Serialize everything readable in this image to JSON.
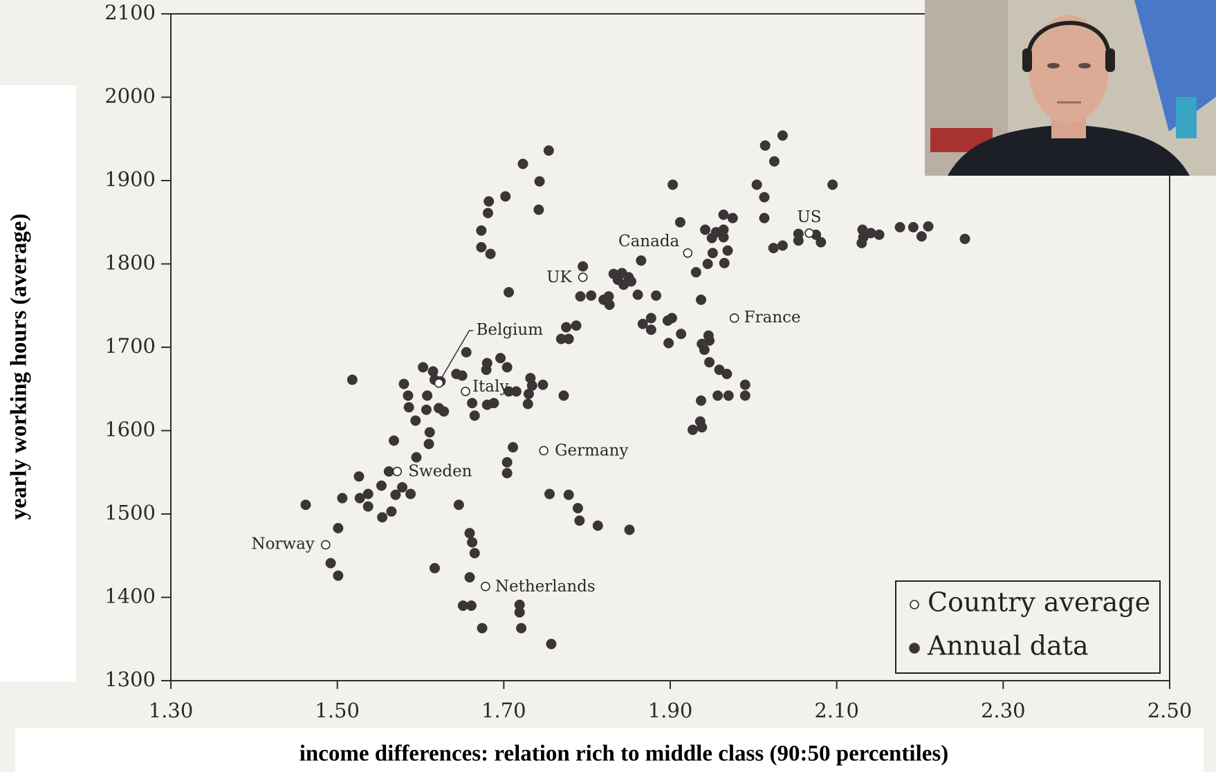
{
  "chart_data": {
    "type": "scatter",
    "x_label": "income differences: relation rich to middle class (90:50 percentiles)",
    "y_label": "yearly working hours (average)",
    "xlim": [
      1.3,
      2.5
    ],
    "xticks": [
      {
        "value": 1.3,
        "label": "1.30"
      },
      {
        "value": 1.5,
        "label": "1.50"
      },
      {
        "value": 1.7,
        "label": "1.70"
      },
      {
        "value": 1.9,
        "label": "1.90"
      },
      {
        "value": 2.1,
        "label": "2.10"
      },
      {
        "value": 2.3,
        "label": "2.30"
      },
      {
        "value": 2.5,
        "label": "2.50"
      }
    ],
    "ylim": [
      1300,
      2100
    ],
    "yticks": [
      1300,
      1400,
      1500,
      1600,
      1700,
      1800,
      1900,
      2000,
      2100
    ],
    "legend_position": "lower right",
    "series": [
      {
        "name": "Country average",
        "marker": "open",
        "color": "#2b2b2b",
        "point_labels": [
          "Norway",
          "Sweden",
          "Belgium",
          "Italy",
          "Netherlands",
          "Germany",
          "UK",
          "Canada",
          "France",
          "US"
        ],
        "x": [
          1.486,
          1.572,
          1.622,
          1.654,
          1.678,
          1.748,
          1.795,
          1.921,
          1.977,
          2.067
        ],
        "y": [
          1463,
          1551,
          1657,
          1647,
          1413,
          1576,
          1784,
          1813,
          1735,
          1837
        ]
      },
      {
        "name": "Annual data",
        "marker": "filled",
        "color": "#3a3536",
        "x": [
          1.754,
          1.723,
          1.743,
          1.702,
          1.682,
          1.681,
          1.742,
          1.673,
          1.673,
          1.684,
          1.706,
          1.795,
          1.792,
          1.805,
          1.82,
          1.826,
          1.827,
          1.832,
          1.842,
          1.85,
          1.837,
          1.844,
          1.853,
          1.861,
          1.865,
          1.883,
          1.867,
          1.877,
          1.877,
          1.897,
          1.902,
          1.913,
          1.898,
          1.775,
          1.787,
          1.769,
          1.778,
          1.903,
          1.912,
          1.931,
          1.945,
          1.937,
          1.942,
          1.95,
          1.955,
          1.964,
          1.964,
          1.951,
          1.964,
          1.975,
          1.965,
          1.969,
          2.004,
          2.013,
          2.014,
          2.025,
          2.035,
          2.013,
          2.024,
          2.035,
          2.054,
          2.054,
          2.075,
          2.081,
          2.095,
          2.131,
          2.132,
          2.13,
          2.141,
          2.151,
          2.176,
          2.192,
          2.202,
          2.21,
          2.254,
          1.938,
          1.947,
          1.946,
          1.941,
          1.947,
          1.959,
          1.968,
          1.97,
          1.99,
          1.99,
          1.957,
          1.937,
          1.936,
          1.927,
          1.938,
          1.603,
          1.615,
          1.617,
          1.624,
          1.643,
          1.65,
          1.655,
          1.68,
          1.679,
          1.696,
          1.704,
          1.706,
          1.715,
          1.732,
          1.747,
          1.772,
          1.662,
          1.665,
          1.68,
          1.688,
          1.734,
          1.73,
          1.729,
          1.58,
          1.585,
          1.586,
          1.594,
          1.607,
          1.608,
          1.622,
          1.628,
          1.611,
          1.61,
          1.595,
          1.568,
          1.562,
          1.578,
          1.57,
          1.565,
          1.588,
          1.553,
          1.537,
          1.526,
          1.506,
          1.501,
          1.462,
          1.492,
          1.501,
          1.518,
          1.527,
          1.537,
          1.554,
          1.646,
          1.711,
          1.704,
          1.704,
          1.755,
          1.778,
          1.789,
          1.791,
          1.813,
          1.851,
          1.659,
          1.662,
          1.665,
          1.617,
          1.659,
          1.651,
          1.661,
          1.674,
          1.719,
          1.719,
          1.721,
          1.757
        ],
        "y": [
          1936,
          1920,
          1899,
          1881,
          1875,
          1861,
          1865,
          1840,
          1820,
          1812,
          1766,
          1797,
          1761,
          1762,
          1757,
          1761,
          1751,
          1788,
          1789,
          1784,
          1781,
          1775,
          1779,
          1763,
          1804,
          1762,
          1728,
          1735,
          1721,
          1732,
          1735,
          1716,
          1705,
          1724,
          1726,
          1710,
          1710,
          1895,
          1850,
          1790,
          1800,
          1757,
          1841,
          1831,
          1838,
          1841,
          1832,
          1813,
          1859,
          1855,
          1801,
          1816,
          1895,
          1880,
          1942,
          1923,
          1954,
          1855,
          1819,
          1822,
          1836,
          1828,
          1835,
          1826,
          1895,
          1841,
          1832,
          1825,
          1837,
          1835,
          1844,
          1844,
          1833,
          1845,
          1830,
          1704,
          1708,
          1714,
          1697,
          1682,
          1673,
          1668,
          1642,
          1655,
          1642,
          1642,
          1636,
          1611,
          1601,
          1604,
          1676,
          1671,
          1661,
          1659,
          1668,
          1666,
          1694,
          1681,
          1673,
          1687,
          1676,
          1647,
          1647,
          1663,
          1655,
          1642,
          1633,
          1618,
          1631,
          1633,
          1654,
          1644,
          1632,
          1656,
          1642,
          1628,
          1612,
          1625,
          1642,
          1627,
          1623,
          1598,
          1584,
          1568,
          1588,
          1551,
          1532,
          1523,
          1503,
          1524,
          1534,
          1509,
          1545,
          1519,
          1483,
          1511,
          1441,
          1426,
          1661,
          1519,
          1524,
          1496,
          1511,
          1580,
          1562,
          1549,
          1524,
          1523,
          1507,
          1492,
          1486,
          1481,
          1477,
          1466,
          1453,
          1435,
          1424,
          1390,
          1390,
          1363,
          1382,
          1391,
          1363,
          1344
        ]
      }
    ]
  }
}
